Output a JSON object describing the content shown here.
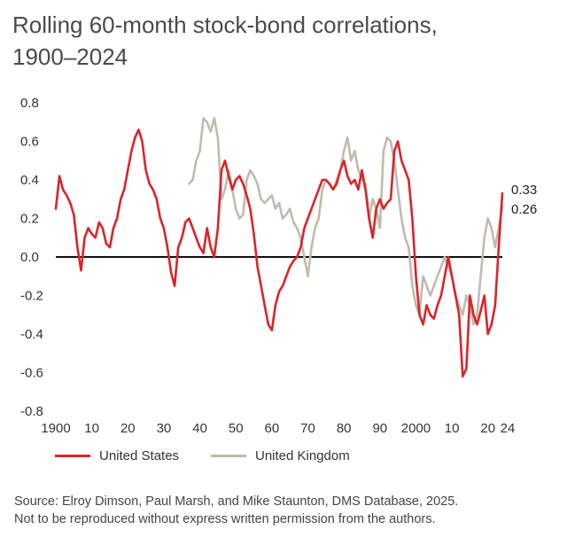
{
  "title": {
    "line1": "Rolling 60-month stock-bond correlations,",
    "line2": "1900–2024"
  },
  "chart_data": {
    "type": "line",
    "ylim": [
      -0.8,
      0.8
    ],
    "xlim": [
      1900,
      2024
    ],
    "yticks": [
      0.8,
      0.6,
      0.4,
      0.2,
      0.0,
      -0.2,
      -0.4,
      -0.6,
      -0.8
    ],
    "ytick_labels": [
      "0.8",
      "0.6",
      "0.4",
      "0.2",
      "0.0",
      "-0.2",
      "-0.4",
      "-0.6",
      "-0.8"
    ],
    "xticks": [
      1900,
      1910,
      1920,
      1930,
      1940,
      1950,
      1960,
      1970,
      1980,
      1990,
      2000,
      2010,
      2020,
      2024
    ],
    "xtick_labels": [
      "1900",
      "10",
      "20",
      "30",
      "40",
      "50",
      "60",
      "70",
      "80",
      "90",
      "2000",
      "10",
      "20",
      "24"
    ],
    "zero_line": true,
    "grid": false,
    "series": [
      {
        "name": "United States",
        "color": "#d9252a",
        "end_label": "0.33",
        "x": [
          1900,
          1901,
          1902,
          1903,
          1904,
          1905,
          1906,
          1907,
          1908,
          1909,
          1910,
          1911,
          1912,
          1913,
          1914,
          1915,
          1916,
          1917,
          1918,
          1919,
          1920,
          1921,
          1922,
          1923,
          1924,
          1925,
          1926,
          1927,
          1928,
          1929,
          1930,
          1931,
          1932,
          1933,
          1934,
          1935,
          1936,
          1937,
          1938,
          1939,
          1940,
          1941,
          1942,
          1943,
          1944,
          1945,
          1946,
          1947,
          1948,
          1949,
          1950,
          1951,
          1952,
          1953,
          1954,
          1955,
          1956,
          1957,
          1958,
          1959,
          1960,
          1961,
          1962,
          1963,
          1964,
          1965,
          1966,
          1967,
          1968,
          1969,
          1970,
          1971,
          1972,
          1973,
          1974,
          1975,
          1976,
          1977,
          1978,
          1979,
          1980,
          1981,
          1982,
          1983,
          1984,
          1985,
          1986,
          1987,
          1988,
          1989,
          1990,
          1991,
          1992,
          1993,
          1994,
          1995,
          1996,
          1997,
          1998,
          1999,
          2000,
          2001,
          2002,
          2003,
          2004,
          2005,
          2006,
          2007,
          2008,
          2009,
          2010,
          2011,
          2012,
          2013,
          2014,
          2015,
          2016,
          2017,
          2018,
          2019,
          2020,
          2021,
          2022,
          2023,
          2024
        ],
        "values": [
          0.25,
          0.42,
          0.35,
          0.32,
          0.28,
          0.22,
          0.05,
          -0.07,
          0.1,
          0.15,
          0.12,
          0.1,
          0.18,
          0.15,
          0.07,
          0.05,
          0.15,
          0.2,
          0.3,
          0.35,
          0.45,
          0.55,
          0.62,
          0.66,
          0.6,
          0.45,
          0.38,
          0.35,
          0.3,
          0.2,
          0.15,
          0.05,
          -0.08,
          -0.15,
          0.05,
          0.1,
          0.18,
          0.2,
          0.15,
          0.1,
          0.05,
          0.02,
          0.15,
          0.05,
          0.0,
          0.15,
          0.45,
          0.5,
          0.42,
          0.35,
          0.4,
          0.42,
          0.38,
          0.32,
          0.25,
          0.12,
          -0.05,
          -0.15,
          -0.25,
          -0.35,
          -0.38,
          -0.25,
          -0.18,
          -0.15,
          -0.1,
          -0.05,
          -0.02,
          0.0,
          0.05,
          0.15,
          0.2,
          0.25,
          0.3,
          0.35,
          0.4,
          0.4,
          0.38,
          0.35,
          0.38,
          0.45,
          0.5,
          0.42,
          0.38,
          0.4,
          0.35,
          0.45,
          0.35,
          0.2,
          0.1,
          0.25,
          0.3,
          0.25,
          0.28,
          0.3,
          0.55,
          0.6,
          0.5,
          0.45,
          0.4,
          0.2,
          -0.1,
          -0.3,
          -0.35,
          -0.25,
          -0.3,
          -0.32,
          -0.25,
          -0.2,
          -0.1,
          0.0,
          -0.1,
          -0.2,
          -0.3,
          -0.62,
          -0.58,
          -0.2,
          -0.3,
          -0.35,
          -0.28,
          -0.2,
          -0.4,
          -0.35,
          -0.25,
          0.05,
          0.33
        ]
      },
      {
        "name": "United Kingdom",
        "color": "#c0bbae",
        "end_label": "0.26",
        "x": [
          1937,
          1938,
          1939,
          1940,
          1941,
          1942,
          1943,
          1944,
          1945,
          1946,
          1947,
          1948,
          1949,
          1950,
          1951,
          1952,
          1953,
          1954,
          1955,
          1956,
          1957,
          1958,
          1959,
          1960,
          1961,
          1962,
          1963,
          1964,
          1965,
          1966,
          1967,
          1968,
          1969,
          1970,
          1971,
          1972,
          1973,
          1974,
          1975,
          1976,
          1977,
          1978,
          1979,
          1980,
          1981,
          1982,
          1983,
          1984,
          1985,
          1986,
          1987,
          1988,
          1989,
          1990,
          1991,
          1992,
          1993,
          1994,
          1995,
          1996,
          1997,
          1998,
          1999,
          2000,
          2001,
          2002,
          2003,
          2004,
          2005,
          2006,
          2007,
          2008,
          2009,
          2010,
          2011,
          2012,
          2013,
          2014,
          2015,
          2016,
          2017,
          2018,
          2019,
          2020,
          2021,
          2022,
          2023,
          2024
        ],
        "values": [
          0.38,
          0.4,
          0.5,
          0.55,
          0.72,
          0.7,
          0.65,
          0.72,
          0.62,
          0.3,
          0.35,
          0.45,
          0.35,
          0.25,
          0.2,
          0.22,
          0.4,
          0.45,
          0.42,
          0.38,
          0.3,
          0.28,
          0.3,
          0.32,
          0.25,
          0.28,
          0.2,
          0.22,
          0.25,
          0.18,
          0.15,
          0.1,
          0.0,
          -0.1,
          0.05,
          0.15,
          0.2,
          0.35,
          0.4,
          0.38,
          0.35,
          0.4,
          0.45,
          0.55,
          0.62,
          0.5,
          0.55,
          0.45,
          0.4,
          0.38,
          0.2,
          0.3,
          0.25,
          0.15,
          0.55,
          0.62,
          0.6,
          0.5,
          0.35,
          0.2,
          0.1,
          0.05,
          -0.15,
          -0.25,
          -0.3,
          -0.1,
          -0.15,
          -0.2,
          -0.15,
          -0.1,
          -0.05,
          0.0,
          -0.05,
          -0.1,
          -0.2,
          -0.25,
          -0.3,
          -0.2,
          -0.25,
          -0.35,
          -0.3,
          -0.1,
          0.1,
          0.2,
          0.15,
          0.05,
          0.15,
          0.26
        ]
      }
    ]
  },
  "legend": [
    {
      "label": "United States",
      "color": "#d9252a"
    },
    {
      "label": "United Kingdom",
      "color": "#c0bbae"
    }
  ],
  "source": {
    "line1": "Source: Elroy Dimson, Paul Marsh, and Mike Staunton, DMS Database, 2025.",
    "line2": "Not to be reproduced without express written permission from the authors."
  }
}
